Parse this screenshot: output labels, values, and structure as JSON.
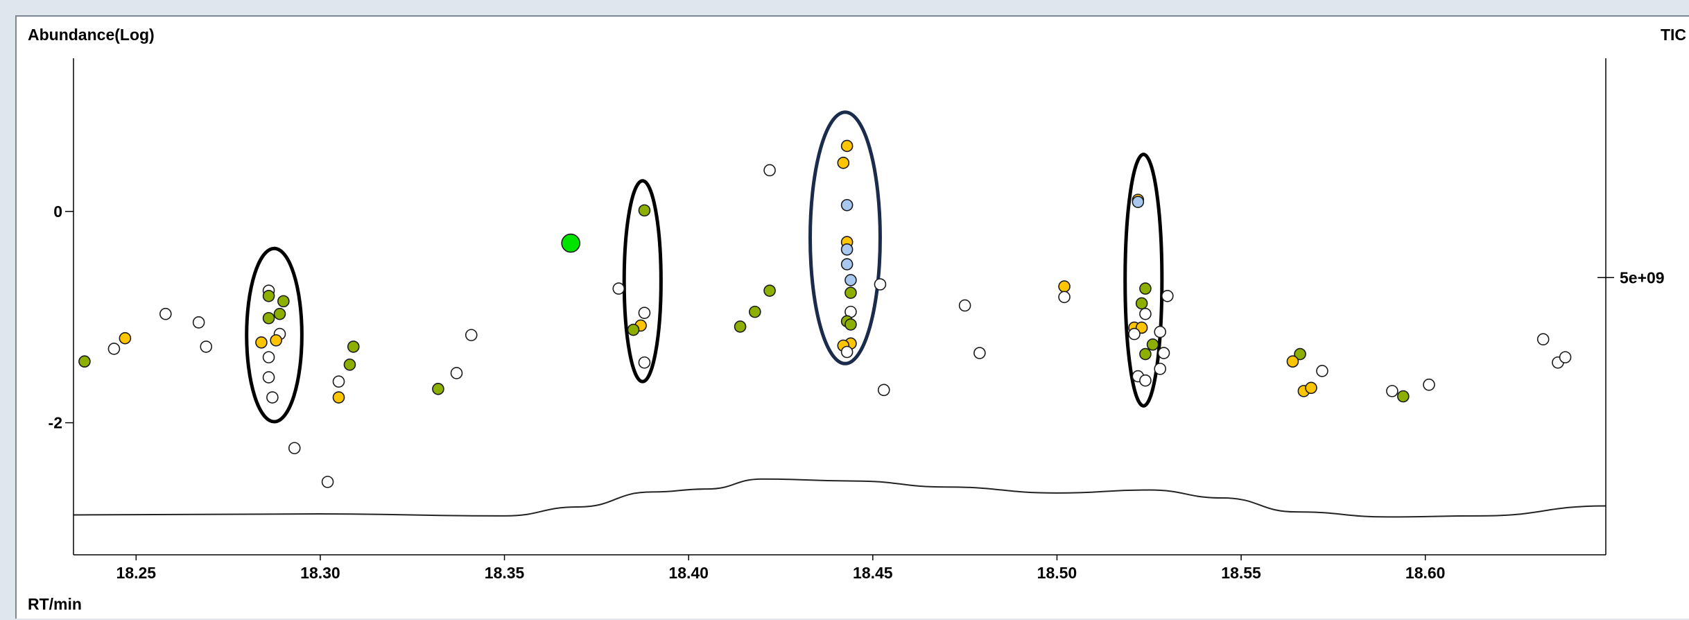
{
  "chart_data": {
    "type": "scatter",
    "y_label": "Abundance(Log)",
    "x_label": "RT/min",
    "right_label": "TIC",
    "y_axis_scale": "log",
    "x_range": [
      18.233,
      18.649
    ],
    "y_range": [
      -3.25,
      1.45
    ],
    "x_ticks": [
      {
        "value": 18.25,
        "label": "18.25"
      },
      {
        "value": 18.3,
        "label": "18.30"
      },
      {
        "value": 18.35,
        "label": "18.35"
      },
      {
        "value": 18.4,
        "label": "18.40"
      },
      {
        "value": 18.45,
        "label": "18.45"
      },
      {
        "value": 18.5,
        "label": "18.50"
      },
      {
        "value": 18.55,
        "label": "18.55"
      },
      {
        "value": 18.6,
        "label": "18.60"
      }
    ],
    "y_ticks": [
      {
        "value": 0,
        "label": "0"
      },
      {
        "value": -2,
        "label": "-2"
      }
    ],
    "right_ticks": [
      {
        "value": 5000000000.0,
        "label": "5e+09"
      }
    ],
    "right_range": [
      -22800000000.0,
      27000000000.0
    ],
    "grid": false,
    "legend": "none",
    "colors": {
      "white": "#ffffff",
      "olive": "#8db000",
      "yellow": "#ffc600",
      "blue": "#a9c8f0",
      "green": "#00e400"
    },
    "points": [
      {
        "x": 18.236,
        "y": -1.42,
        "c": "olive"
      },
      {
        "x": 18.244,
        "y": -1.3,
        "c": "white"
      },
      {
        "x": 18.247,
        "y": -1.2,
        "c": "yellow"
      },
      {
        "x": 18.258,
        "y": -0.97,
        "c": "white"
      },
      {
        "x": 18.267,
        "y": -1.05,
        "c": "white"
      },
      {
        "x": 18.269,
        "y": -1.28,
        "c": "white"
      },
      {
        "x": 18.286,
        "y": -0.75,
        "c": "white"
      },
      {
        "x": 18.286,
        "y": -0.8,
        "c": "olive"
      },
      {
        "x": 18.289,
        "y": -0.97,
        "c": "olive"
      },
      {
        "x": 18.29,
        "y": -0.85,
        "c": "olive"
      },
      {
        "x": 18.286,
        "y": -1.01,
        "c": "olive"
      },
      {
        "x": 18.289,
        "y": -1.16,
        "c": "white"
      },
      {
        "x": 18.288,
        "y": -1.22,
        "c": "yellow"
      },
      {
        "x": 18.284,
        "y": -1.24,
        "c": "yellow"
      },
      {
        "x": 18.286,
        "y": -1.38,
        "c": "white"
      },
      {
        "x": 18.286,
        "y": -1.57,
        "c": "white"
      },
      {
        "x": 18.287,
        "y": -1.76,
        "c": "white"
      },
      {
        "x": 18.293,
        "y": -2.24,
        "c": "white"
      },
      {
        "x": 18.302,
        "y": -2.56,
        "c": "white"
      },
      {
        "x": 18.305,
        "y": -1.61,
        "c": "white"
      },
      {
        "x": 18.305,
        "y": -1.76,
        "c": "yellow"
      },
      {
        "x": 18.308,
        "y": -1.45,
        "c": "olive"
      },
      {
        "x": 18.309,
        "y": -1.28,
        "c": "olive"
      },
      {
        "x": 18.332,
        "y": -1.68,
        "c": "olive"
      },
      {
        "x": 18.337,
        "y": -1.53,
        "c": "white"
      },
      {
        "x": 18.341,
        "y": -1.17,
        "c": "white"
      },
      {
        "x": 18.368,
        "y": -0.3,
        "c": "green",
        "big": true
      },
      {
        "x": 18.381,
        "y": -0.73,
        "c": "white"
      },
      {
        "x": 18.388,
        "y": 0.01,
        "c": "olive"
      },
      {
        "x": 18.388,
        "y": -0.96,
        "c": "white"
      },
      {
        "x": 18.387,
        "y": -1.08,
        "c": "yellow"
      },
      {
        "x": 18.385,
        "y": -1.12,
        "c": "olive"
      },
      {
        "x": 18.388,
        "y": -1.43,
        "c": "white"
      },
      {
        "x": 18.414,
        "y": -1.09,
        "c": "olive"
      },
      {
        "x": 18.418,
        "y": -0.95,
        "c": "olive"
      },
      {
        "x": 18.422,
        "y": -0.75,
        "c": "olive"
      },
      {
        "x": 18.422,
        "y": 0.39,
        "c": "white"
      },
      {
        "x": 18.443,
        "y": 0.62,
        "c": "yellow"
      },
      {
        "x": 18.442,
        "y": 0.46,
        "c": "yellow"
      },
      {
        "x": 18.443,
        "y": 0.06,
        "c": "blue"
      },
      {
        "x": 18.443,
        "y": -0.29,
        "c": "yellow"
      },
      {
        "x": 18.443,
        "y": -0.36,
        "c": "blue"
      },
      {
        "x": 18.443,
        "y": -0.5,
        "c": "blue"
      },
      {
        "x": 18.444,
        "y": -0.65,
        "c": "blue"
      },
      {
        "x": 18.444,
        "y": -0.77,
        "c": "olive"
      },
      {
        "x": 18.444,
        "y": -0.95,
        "c": "white"
      },
      {
        "x": 18.443,
        "y": -1.04,
        "c": "olive"
      },
      {
        "x": 18.444,
        "y": -1.07,
        "c": "olive"
      },
      {
        "x": 18.444,
        "y": -1.25,
        "c": "yellow"
      },
      {
        "x": 18.442,
        "y": -1.27,
        "c": "yellow"
      },
      {
        "x": 18.443,
        "y": -1.33,
        "c": "white"
      },
      {
        "x": 18.452,
        "y": -0.69,
        "c": "white"
      },
      {
        "x": 18.453,
        "y": -1.69,
        "c": "white"
      },
      {
        "x": 18.475,
        "y": -0.89,
        "c": "white"
      },
      {
        "x": 18.479,
        "y": -1.34,
        "c": "white"
      },
      {
        "x": 18.502,
        "y": -0.71,
        "c": "yellow"
      },
      {
        "x": 18.502,
        "y": -0.81,
        "c": "white"
      },
      {
        "x": 18.522,
        "y": 0.11,
        "c": "yellow"
      },
      {
        "x": 18.522,
        "y": 0.09,
        "c": "blue"
      },
      {
        "x": 18.524,
        "y": -0.73,
        "c": "olive"
      },
      {
        "x": 18.523,
        "y": -0.87,
        "c": "olive"
      },
      {
        "x": 18.524,
        "y": -0.97,
        "c": "white"
      },
      {
        "x": 18.53,
        "y": -0.8,
        "c": "white"
      },
      {
        "x": 18.521,
        "y": -1.1,
        "c": "yellow"
      },
      {
        "x": 18.523,
        "y": -1.1,
        "c": "yellow"
      },
      {
        "x": 18.528,
        "y": -1.14,
        "c": "white"
      },
      {
        "x": 18.521,
        "y": -1.16,
        "c": "white"
      },
      {
        "x": 18.526,
        "y": -1.26,
        "c": "olive"
      },
      {
        "x": 18.524,
        "y": -1.35,
        "c": "olive"
      },
      {
        "x": 18.529,
        "y": -1.34,
        "c": "white"
      },
      {
        "x": 18.528,
        "y": -1.49,
        "c": "white"
      },
      {
        "x": 18.522,
        "y": -1.56,
        "c": "white"
      },
      {
        "x": 18.524,
        "y": -1.6,
        "c": "white"
      },
      {
        "x": 18.566,
        "y": -1.35,
        "c": "olive"
      },
      {
        "x": 18.564,
        "y": -1.42,
        "c": "yellow"
      },
      {
        "x": 18.572,
        "y": -1.51,
        "c": "white"
      },
      {
        "x": 18.567,
        "y": -1.7,
        "c": "yellow"
      },
      {
        "x": 18.569,
        "y": -1.67,
        "c": "yellow"
      },
      {
        "x": 18.591,
        "y": -1.7,
        "c": "white"
      },
      {
        "x": 18.594,
        "y": -1.75,
        "c": "olive"
      },
      {
        "x": 18.601,
        "y": -1.64,
        "c": "white"
      },
      {
        "x": 18.632,
        "y": -1.21,
        "c": "white"
      },
      {
        "x": 18.636,
        "y": -1.43,
        "c": "white"
      },
      {
        "x": 18.638,
        "y": -1.38,
        "c": "white"
      }
    ],
    "tic_line": [
      {
        "x": 18.233,
        "v": -18800000000.0
      },
      {
        "x": 18.3,
        "v": -18700000000.0
      },
      {
        "x": 18.35,
        "v": -18900000000.0
      },
      {
        "x": 18.37,
        "v": -18000000000.0
      },
      {
        "x": 18.39,
        "v": -16500000000.0
      },
      {
        "x": 18.405,
        "v": -16200000000.0
      },
      {
        "x": 18.42,
        "v": -15200000000.0
      },
      {
        "x": 18.445,
        "v": -15400000000.0
      },
      {
        "x": 18.47,
        "v": -16000000000.0
      },
      {
        "x": 18.5,
        "v": -16600000000.0
      },
      {
        "x": 18.525,
        "v": -16300000000.0
      },
      {
        "x": 18.545,
        "v": -17100000000.0
      },
      {
        "x": 18.565,
        "v": -18500000000.0
      },
      {
        "x": 18.59,
        "v": -19000000000.0
      },
      {
        "x": 18.615,
        "v": -18900000000.0
      },
      {
        "x": 18.649,
        "v": -17900000000.0
      }
    ],
    "annotations": [
      {
        "type": "ellipse",
        "cx": 18.2875,
        "cy": -1.17,
        "rx": 0.0075,
        "ry": 0.82,
        "color": "#000000"
      },
      {
        "type": "ellipse",
        "cx": 18.3875,
        "cy": -0.66,
        "rx": 0.005,
        "ry": 0.95,
        "color": "#000000"
      },
      {
        "type": "ellipse",
        "cx": 18.4425,
        "cy": -0.25,
        "rx": 0.0095,
        "ry": 1.19,
        "color": "#1a2b4c"
      },
      {
        "type": "ellipse",
        "cx": 18.5235,
        "cy": -0.65,
        "rx": 0.005,
        "ry": 1.19,
        "color": "#000000"
      }
    ]
  }
}
